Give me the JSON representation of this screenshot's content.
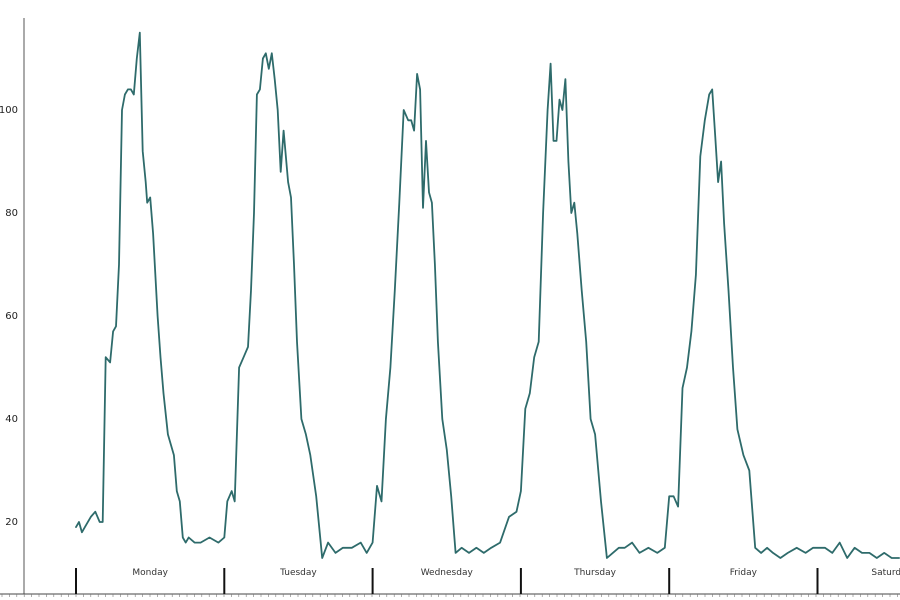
{
  "chart_data": {
    "type": "line",
    "title": "",
    "xlabel": "",
    "ylabel": "",
    "ylim": [
      10,
      118
    ],
    "yticks": [
      20,
      40,
      60,
      80,
      100
    ],
    "grid": false,
    "line_color": "#2e6b6b",
    "day_labels": [
      "Monday",
      "Tuesday",
      "Wednesday",
      "Thursday",
      "Friday",
      "Saturday"
    ],
    "x_range": [
      -0.05,
      5.55
    ],
    "series": [
      {
        "x": [
          0.0,
          0.02,
          0.04,
          0.06,
          0.1,
          0.13,
          0.16,
          0.18,
          0.2,
          0.23,
          0.25,
          0.27,
          0.29,
          0.31,
          0.33,
          0.35,
          0.37,
          0.39,
          0.41,
          0.43,
          0.45,
          0.47,
          0.48,
          0.5,
          0.52,
          0.55,
          0.57,
          0.59,
          0.62,
          0.64,
          0.66,
          0.68,
          0.7,
          0.72,
          0.74,
          0.76,
          0.8,
          0.84,
          0.9,
          0.96,
          1.0,
          1.02,
          1.05,
          1.07,
          1.1,
          1.13,
          1.16,
          1.18,
          1.2,
          1.22,
          1.24,
          1.26,
          1.28,
          1.3,
          1.32,
          1.34,
          1.36,
          1.38,
          1.4,
          1.43,
          1.45,
          1.47,
          1.49,
          1.52,
          1.55,
          1.58,
          1.62,
          1.66,
          1.7,
          1.75,
          1.8,
          1.86,
          1.92,
          1.96,
          2.0,
          2.03,
          2.06,
          2.09,
          2.12,
          2.15,
          2.18,
          2.21,
          2.24,
          2.26,
          2.28,
          2.3,
          2.32,
          2.34,
          2.36,
          2.38,
          2.4,
          2.42,
          2.44,
          2.47,
          2.5,
          2.53,
          2.56,
          2.6,
          2.65,
          2.7,
          2.75,
          2.8,
          2.86,
          2.92,
          2.97,
          3.0,
          3.03,
          3.06,
          3.09,
          3.12,
          3.15,
          3.18,
          3.2,
          3.22,
          3.24,
          3.26,
          3.28,
          3.3,
          3.32,
          3.34,
          3.36,
          3.38,
          3.41,
          3.44,
          3.47,
          3.5,
          3.54,
          3.58,
          3.62,
          3.66,
          3.7,
          3.75,
          3.8,
          3.86,
          3.92,
          3.97,
          4.0,
          4.03,
          4.06,
          4.09,
          4.12,
          4.15,
          4.18,
          4.21,
          4.24,
          4.27,
          4.29,
          4.31,
          4.33,
          4.35,
          4.37,
          4.4,
          4.43,
          4.46,
          4.5,
          4.54,
          4.58,
          4.62,
          4.66,
          4.7,
          4.75,
          4.8,
          4.86,
          4.92,
          4.97,
          5.0,
          5.05,
          5.1,
          5.15,
          5.2,
          5.25,
          5.3,
          5.35,
          5.4,
          5.45,
          5.5,
          5.55
        ],
        "values": [
          19,
          20,
          18,
          19,
          21,
          22,
          20,
          20,
          52,
          51,
          57,
          58,
          70,
          100,
          103,
          104,
          104,
          103,
          110,
          115,
          92,
          86,
          82,
          83,
          76,
          60,
          52,
          45,
          37,
          35,
          33,
          26,
          24,
          17,
          16,
          17,
          16,
          16,
          17,
          16,
          17,
          24,
          26,
          24,
          50,
          52,
          54,
          65,
          80,
          103,
          104,
          110,
          111,
          108,
          111,
          106,
          100,
          88,
          96,
          86,
          83,
          70,
          55,
          40,
          37,
          33,
          25,
          13,
          16,
          14,
          15,
          15,
          16,
          14,
          16,
          27,
          24,
          40,
          50,
          65,
          82,
          100,
          98,
          98,
          96,
          107,
          104,
          81,
          94,
          84,
          82,
          70,
          55,
          40,
          34,
          25,
          14,
          15,
          14,
          15,
          14,
          15,
          16,
          21,
          22,
          26,
          42,
          45,
          52,
          55,
          80,
          100,
          109,
          94,
          94,
          102,
          100,
          106,
          90,
          80,
          82,
          76,
          65,
          55,
          40,
          37,
          24,
          13,
          14,
          15,
          15,
          16,
          14,
          15,
          14,
          15,
          25,
          25,
          23,
          46,
          50,
          57,
          68,
          91,
          98,
          103,
          104,
          95,
          86,
          90,
          78,
          65,
          50,
          38,
          33,
          30,
          15,
          14,
          15,
          14,
          13,
          14,
          15,
          14,
          15,
          15,
          15,
          14,
          16,
          13,
          15,
          14,
          14,
          13,
          14,
          13,
          13
        ]
      }
    ]
  }
}
